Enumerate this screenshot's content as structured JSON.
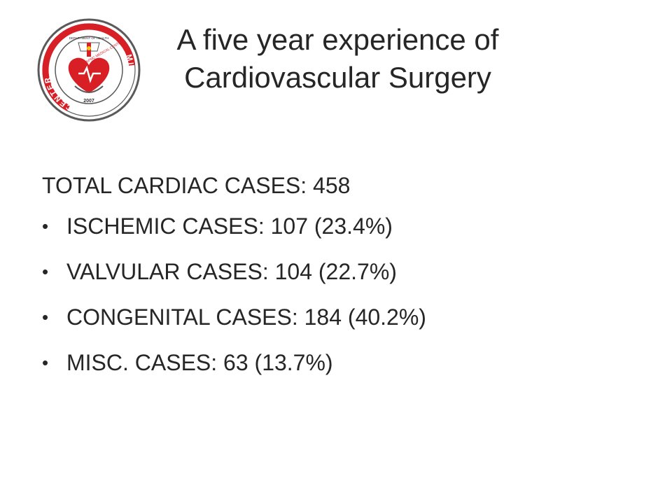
{
  "title": {
    "line1": "A five year experience of",
    "line2": "Cardiovascular Surgery"
  },
  "logo": {
    "icon": "mindanao-heart-center-seal-icon",
    "text": "MINDANAO HEART CENTER",
    "top_text": "DEPARTMENT OF HEALTH",
    "inner_text": "SPMC MEDICAL CENTER",
    "year": "2007",
    "colors": {
      "red": "#d81f26",
      "outline": "#5a5a5a"
    }
  },
  "content": {
    "total": "TOTAL CARDIAC CASES: 458",
    "bullet_glyph": "•",
    "items": [
      "ISCHEMIC CASES: 107 (23.4%)",
      "VALVULAR CASES: 104 (22.7%)",
      "CONGENITAL CASES: 184 (40.2%)",
      "MISC. CASES: 63 (13.7%)"
    ]
  }
}
